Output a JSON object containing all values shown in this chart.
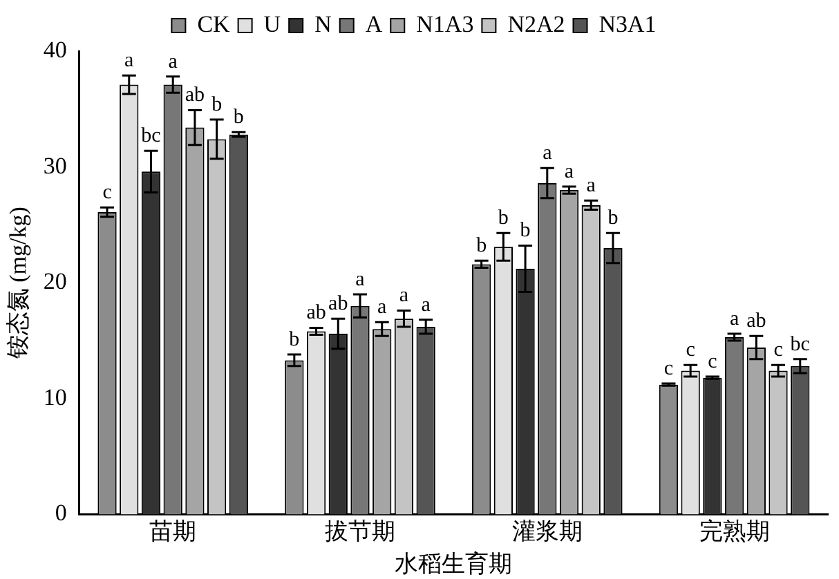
{
  "chart_data": {
    "type": "bar",
    "xlabel": "水稻生育期",
    "ylabel": "铵态氮 (mg/kg)",
    "categories": [
      "苗期",
      "拔节期",
      "灌浆期",
      "完熟期"
    ],
    "ylim": [
      0,
      40
    ],
    "yticks": [
      0,
      10,
      20,
      30,
      40
    ],
    "grid": false,
    "legend": "top",
    "series": [
      {
        "name": "CK",
        "color": "#8c8c8c",
        "values": [
          26.1,
          13.3,
          21.6,
          11.2
        ],
        "errors": [
          0.4,
          0.5,
          0.3,
          0.1
        ],
        "value_labels": [
          "c",
          "b",
          "b",
          "c"
        ]
      },
      {
        "name": "U",
        "color": "#e0e0e0",
        "values": [
          37.1,
          15.8,
          23.1,
          12.4
        ],
        "errors": [
          0.8,
          0.3,
          1.2,
          0.5
        ],
        "value_labels": [
          "a",
          "ab",
          "b",
          "c"
        ]
      },
      {
        "name": "N",
        "color": "#333333",
        "values": [
          29.6,
          15.6,
          21.2,
          11.8
        ],
        "errors": [
          1.8,
          1.3,
          2.0,
          0.1
        ],
        "value_labels": [
          "bc",
          "ab",
          "b",
          "c"
        ]
      },
      {
        "name": "A",
        "color": "#777777",
        "values": [
          37.1,
          18.0,
          28.6,
          15.3
        ],
        "errors": [
          0.7,
          1.0,
          1.3,
          0.3
        ],
        "value_labels": [
          "a",
          "a",
          "a",
          "a"
        ]
      },
      {
        "name": "N1A3",
        "color": "#a5a5a5",
        "values": [
          33.4,
          16.0,
          28.0,
          14.4
        ],
        "errors": [
          1.5,
          0.6,
          0.3,
          1.0
        ],
        "value_labels": [
          "ab",
          "a",
          "a",
          "ab"
        ]
      },
      {
        "name": "N2A2",
        "color": "#c4c4c4",
        "values": [
          32.4,
          16.9,
          26.7,
          12.4
        ],
        "errors": [
          1.7,
          0.7,
          0.4,
          0.5
        ],
        "value_labels": [
          "b",
          "a",
          "a",
          "c"
        ]
      },
      {
        "name": "N3A1",
        "color": "#555555",
        "values": [
          32.8,
          16.2,
          23.0,
          12.8
        ],
        "errors": [
          0.2,
          0.6,
          1.3,
          0.6
        ],
        "value_labels": [
          "b",
          "a",
          "b",
          "bc"
        ]
      }
    ]
  }
}
